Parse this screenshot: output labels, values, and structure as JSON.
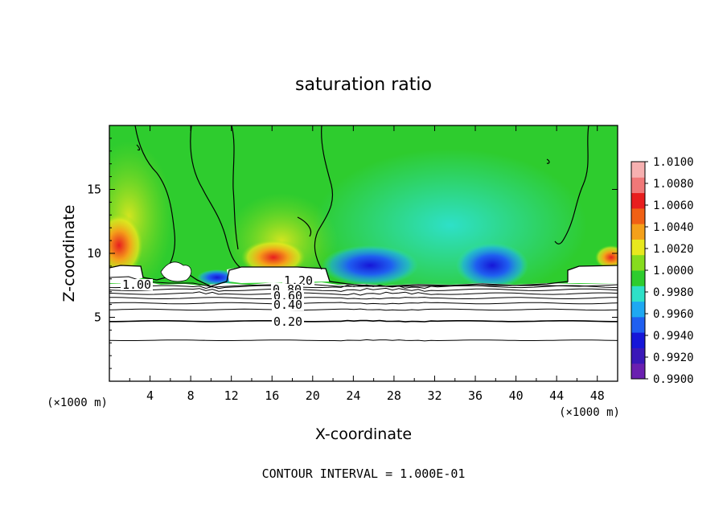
{
  "chart_data": {
    "type": "heatmap",
    "title": "saturation ratio",
    "xlabel": "X-coordinate",
    "ylabel": "Z-coordinate",
    "x_unit": "(×1000 m)",
    "y_unit": "(×1000 m)",
    "footer": "CONTOUR INTERVAL = 1.000E-01",
    "xlim": [
      0,
      50
    ],
    "ylim": [
      0,
      20
    ],
    "x_ticks": [
      4,
      8,
      12,
      16,
      20,
      24,
      28,
      32,
      36,
      40,
      44,
      48
    ],
    "x_tick_labels": [
      "4",
      "8",
      "12",
      "16",
      "20",
      "24",
      "28",
      "32",
      "36",
      "40",
      "44",
      "48"
    ],
    "y_ticks": [
      5,
      10,
      15
    ],
    "y_tick_labels": [
      "5",
      "10",
      "15"
    ],
    "colorbar": {
      "min": 0.99,
      "max": 1.01,
      "labels": [
        "1.0100",
        "1.0080",
        "1.0060",
        "1.0040",
        "1.0020",
        "1.0000",
        "0.9980",
        "0.9960",
        "0.9940",
        "0.9920",
        "0.9900"
      ],
      "colors": [
        "#6a1fb0",
        "#3a18b8",
        "#1616d8",
        "#1f5ff0",
        "#1ea8f2",
        "#2ee0c8",
        "#2ecc2e",
        "#86dc1e",
        "#e8e81e",
        "#f4a01a",
        "#f06014",
        "#e81e1e",
        "#f07878",
        "#f6b0b0"
      ]
    },
    "contour_labels": [
      "1.20",
      "1.00",
      "0.80",
      "0.60",
      "0.40",
      "0.20"
    ],
    "contour_levels_subsaturated_z": [
      3.2,
      4.7,
      5.6,
      6.1,
      6.5,
      6.85,
      7.15,
      7.4
    ],
    "background_value": 1.0
  }
}
